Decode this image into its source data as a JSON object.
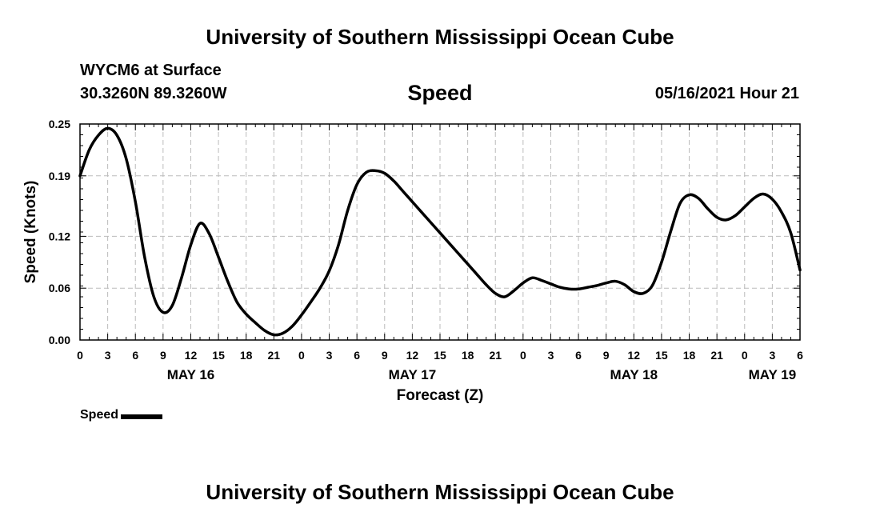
{
  "header": {
    "title_top": "University of Southern Mississippi Ocean Cube",
    "station": "WYCM6 at Surface",
    "coords": "30.3260N  89.3260W",
    "datetime": "05/16/2021 Hour 21"
  },
  "footer": {
    "title_bottom": "University of Southern Mississippi Ocean Cube"
  },
  "legend": {
    "label": "Speed"
  },
  "colors": {
    "line": "#000000",
    "grid": "#bbbbbb",
    "background": "#ffffff"
  },
  "chart_data": {
    "type": "line",
    "title": "Speed",
    "xlabel": "Forecast (Z)",
    "ylabel": "Speed (Knots)",
    "ylim": [
      0,
      0.25
    ],
    "xlim": [
      0,
      78
    ],
    "grid": true,
    "legend_position": "bottom-left",
    "yticks": [
      0.0,
      0.06,
      0.12,
      0.19,
      0.25
    ],
    "ytick_labels": [
      "0.00",
      "0.06",
      "0.12",
      "0.19",
      "0.25"
    ],
    "xticks": [
      0,
      3,
      6,
      9,
      12,
      15,
      18,
      21,
      24,
      27,
      30,
      33,
      36,
      39,
      42,
      45,
      48,
      51,
      54,
      57,
      60,
      63,
      66,
      69,
      72,
      75,
      78
    ],
    "xtick_labels": [
      "0",
      "3",
      "6",
      "9",
      "12",
      "15",
      "18",
      "21",
      "0",
      "3",
      "6",
      "9",
      "12",
      "15",
      "18",
      "21",
      "0",
      "3",
      "6",
      "9",
      "12",
      "15",
      "18",
      "21",
      "0",
      "3",
      "6"
    ],
    "date_labels": [
      {
        "text": "MAY 16",
        "x": 12
      },
      {
        "text": "MAY 17",
        "x": 36
      },
      {
        "text": "MAY 18",
        "x": 60
      },
      {
        "text": "MAY 19",
        "x": 75
      }
    ],
    "series": [
      {
        "name": "Speed",
        "x": [
          0,
          1,
          2,
          3,
          4,
          5,
          6,
          7,
          8,
          9,
          10,
          11,
          12,
          13,
          14,
          15,
          16,
          17,
          18,
          19,
          20,
          21,
          22,
          23,
          24,
          25,
          26,
          27,
          28,
          29,
          30,
          31,
          32,
          33,
          34,
          35,
          36,
          37,
          38,
          39,
          40,
          41,
          42,
          43,
          44,
          45,
          46,
          47,
          48,
          49,
          50,
          51,
          52,
          53,
          54,
          55,
          56,
          57,
          58,
          59,
          60,
          61,
          62,
          63,
          64,
          65,
          66,
          67,
          68,
          69,
          70,
          71,
          72,
          73,
          74,
          75,
          76,
          77,
          78
        ],
        "values": [
          0.19,
          0.22,
          0.237,
          0.245,
          0.237,
          0.21,
          0.16,
          0.096,
          0.05,
          0.032,
          0.04,
          0.072,
          0.11,
          0.135,
          0.123,
          0.096,
          0.068,
          0.044,
          0.03,
          0.02,
          0.011,
          0.006,
          0.008,
          0.016,
          0.029,
          0.044,
          0.06,
          0.08,
          0.11,
          0.15,
          0.18,
          0.194,
          0.196,
          0.193,
          0.184,
          0.172,
          0.16,
          0.148,
          0.136,
          0.124,
          0.112,
          0.1,
          0.088,
          0.076,
          0.064,
          0.054,
          0.05,
          0.057,
          0.066,
          0.072,
          0.069,
          0.065,
          0.061,
          0.059,
          0.059,
          0.061,
          0.063,
          0.066,
          0.068,
          0.064,
          0.056,
          0.054,
          0.063,
          0.09,
          0.126,
          0.158,
          0.168,
          0.164,
          0.152,
          0.142,
          0.139,
          0.144,
          0.154,
          0.164,
          0.169,
          0.163,
          0.148,
          0.124,
          0.081
        ]
      }
    ]
  }
}
